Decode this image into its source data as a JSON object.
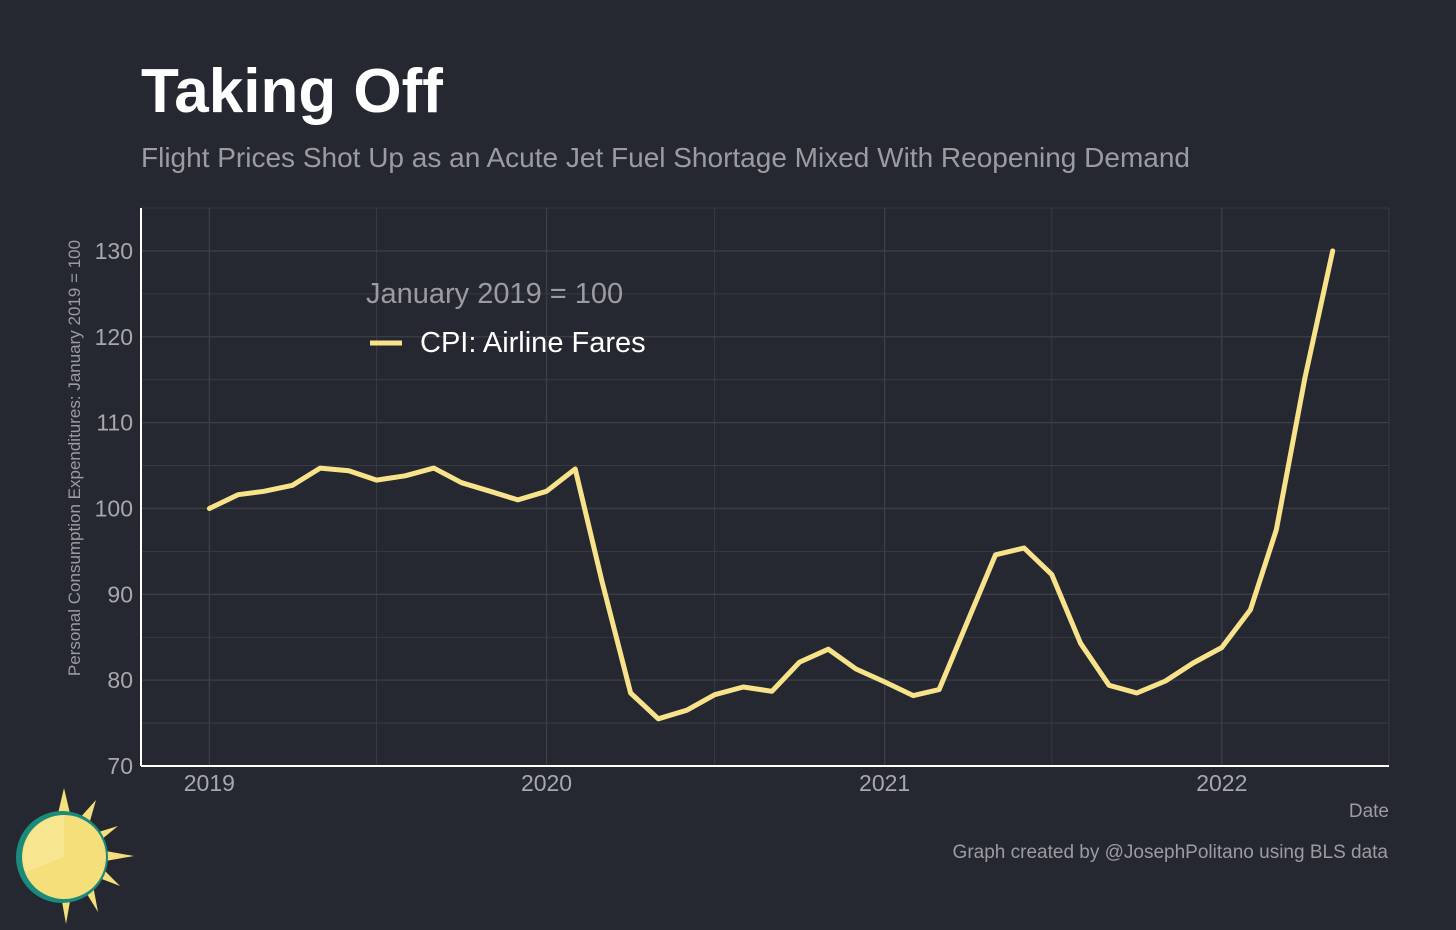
{
  "header": {
    "title": "Taking Off",
    "subtitle": "Flight Prices Shot Up as an Acute Jet Fuel Shortage Mixed With Reopening Demand"
  },
  "caption": "Graph created by @JosephPolitano using BLS data",
  "logo": {
    "icon": "sun-icon",
    "colors": {
      "sun": "#f5df7a",
      "ring": "#1a8a7c",
      "rays": "#f5df7a"
    }
  },
  "colors": {
    "background": "#252830",
    "grid": "#3b3f48",
    "axis": "#ffffff",
    "line": "#f8e38a",
    "muted_text": "#9a9ca1",
    "tick_text": "#a6a8ad"
  },
  "chart_data": {
    "type": "line",
    "title": "Taking Off",
    "subtitle": "Flight Prices Shot Up as an Acute Jet Fuel Shortage Mixed With Reopening Demand",
    "xlabel": "Date",
    "ylabel": "Personal Consumption Expenditures: January 2019 = 100",
    "ylim": [
      70,
      135
    ],
    "xlim": [
      "2018-10-19",
      "2022-07-01"
    ],
    "yticks": [
      70,
      80,
      90,
      100,
      110,
      120,
      130
    ],
    "xticks": [
      "2019",
      "2020",
      "2021",
      "2022"
    ],
    "grid": true,
    "legend": {
      "title": "January 2019 = 100",
      "position": "top-left"
    },
    "series": [
      {
        "name": "CPI: Airline Fares",
        "color": "#f8e38a",
        "x": [
          "2019-01",
          "2019-02",
          "2019-03",
          "2019-04",
          "2019-05",
          "2019-06",
          "2019-07",
          "2019-08",
          "2019-09",
          "2019-10",
          "2019-11",
          "2019-12",
          "2020-01",
          "2020-02",
          "2020-03",
          "2020-04",
          "2020-05",
          "2020-06",
          "2020-07",
          "2020-08",
          "2020-09",
          "2020-10",
          "2020-11",
          "2020-12",
          "2021-01",
          "2021-02",
          "2021-03",
          "2021-04",
          "2021-05",
          "2021-06",
          "2021-07",
          "2021-08",
          "2021-09",
          "2021-10",
          "2021-11",
          "2021-12",
          "2022-01",
          "2022-02",
          "2022-03",
          "2022-04",
          "2022-05"
        ],
        "values": [
          100.0,
          101.6,
          102.0,
          102.7,
          104.7,
          104.4,
          103.3,
          103.8,
          104.7,
          103.0,
          102.0,
          101.0,
          102.0,
          104.6,
          91.5,
          78.5,
          75.5,
          76.5,
          78.3,
          79.2,
          78.7,
          82.1,
          83.6,
          81.3,
          79.8,
          78.2,
          78.9,
          86.9,
          94.6,
          95.4,
          92.3,
          84.3,
          79.4,
          78.5,
          79.9,
          82.0,
          83.8,
          88.2,
          97.5,
          115.2,
          130.0
        ]
      }
    ]
  }
}
